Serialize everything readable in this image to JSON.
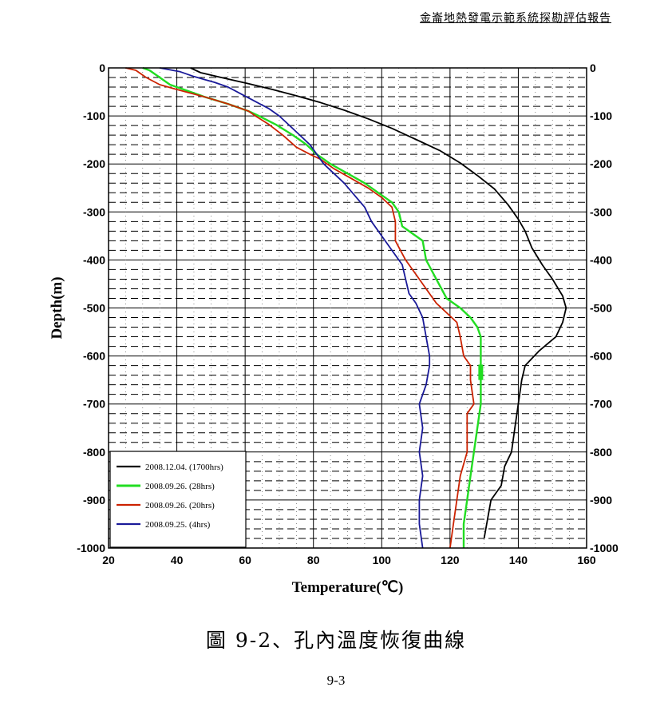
{
  "header": {
    "report_title": "金崙地熱發電示範系統探勘評估報告"
  },
  "figure": {
    "caption": "圖 9-2、孔內溫度恢復曲線"
  },
  "footer": {
    "page_number": "9-3"
  },
  "chart_data": {
    "type": "line",
    "xlabel": "Temperature(℃)",
    "ylabel": "Depth(m)",
    "xlim": [
      20,
      160
    ],
    "ylim": [
      -1000,
      0
    ],
    "x_ticks": [
      "20",
      "40",
      "60",
      "80",
      "100",
      "120",
      "140",
      "160"
    ],
    "y_ticks": [
      "0",
      "-100",
      "-200",
      "-300",
      "-400",
      "-500",
      "-600",
      "-700",
      "-800",
      "-900",
      "-1000"
    ],
    "grid": "major solid, dashed minor horizontals",
    "legend_position": "bottom-left",
    "colors": {
      "s2008_12_04": "#000000",
      "s2008_09_26_28": "#22dd22",
      "s2008_09_26_20": "#cc2200",
      "s2008_09_25_4": "#1a1a99"
    },
    "series": [
      {
        "name": "2008.12.04. (1700hrs)",
        "color": "#000000",
        "points": [
          [
            44,
            0
          ],
          [
            47,
            -10
          ],
          [
            53,
            -20
          ],
          [
            61,
            -33
          ],
          [
            68,
            -45
          ],
          [
            75,
            -58
          ],
          [
            82,
            -72
          ],
          [
            89,
            -88
          ],
          [
            96,
            -106
          ],
          [
            103,
            -126
          ],
          [
            110,
            -149
          ],
          [
            117,
            -172
          ],
          [
            123,
            -198
          ],
          [
            128,
            -224
          ],
          [
            133,
            -252
          ],
          [
            137,
            -285
          ],
          [
            140,
            -315
          ],
          [
            142,
            -340
          ],
          [
            144,
            -375
          ],
          [
            147,
            -410
          ],
          [
            150,
            -440
          ],
          [
            153,
            -475
          ],
          [
            154,
            -500
          ],
          [
            153,
            -530
          ],
          [
            151,
            -560
          ],
          [
            146,
            -590
          ],
          [
            142,
            -620
          ],
          [
            141,
            -650
          ],
          [
            140,
            -700
          ],
          [
            139,
            -750
          ],
          [
            138,
            -800
          ],
          [
            136,
            -830
          ],
          [
            135,
            -870
          ],
          [
            132,
            -900
          ],
          [
            131,
            -940
          ],
          [
            130,
            -980
          ]
        ]
      },
      {
        "name": "2008.09.26. (28hrs)",
        "color": "#22dd22",
        "points": [
          [
            30,
            0
          ],
          [
            32,
            -5
          ],
          [
            35,
            -20
          ],
          [
            38,
            -35
          ],
          [
            42,
            -45
          ],
          [
            48,
            -60
          ],
          [
            55,
            -75
          ],
          [
            61,
            -90
          ],
          [
            64,
            -100
          ],
          [
            69,
            -118
          ],
          [
            74,
            -140
          ],
          [
            78,
            -160
          ],
          [
            81,
            -180
          ],
          [
            85,
            -200
          ],
          [
            90,
            -220
          ],
          [
            95,
            -240
          ],
          [
            99,
            -260
          ],
          [
            103,
            -280
          ],
          [
            105,
            -300
          ],
          [
            106,
            -330
          ],
          [
            112,
            -360
          ],
          [
            113,
            -400
          ],
          [
            116,
            -440
          ],
          [
            119,
            -480
          ],
          [
            123,
            -500
          ],
          [
            126,
            -520
          ],
          [
            128,
            -540
          ],
          [
            129,
            -560
          ],
          [
            129,
            -600
          ],
          [
            129,
            -650
          ],
          [
            129,
            -700
          ],
          [
            128,
            -750
          ],
          [
            127,
            -800
          ],
          [
            126,
            -850
          ],
          [
            125,
            -900
          ],
          [
            124,
            -950
          ],
          [
            124,
            -1000
          ]
        ]
      },
      {
        "name": "2008.09.26. (20hrs)",
        "color": "#cc2200",
        "points": [
          [
            25,
            0
          ],
          [
            28,
            -5
          ],
          [
            31,
            -20
          ],
          [
            35,
            -35
          ],
          [
            40,
            -45
          ],
          [
            48,
            -60
          ],
          [
            55,
            -75
          ],
          [
            61,
            -90
          ],
          [
            63,
            -100
          ],
          [
            67,
            -118
          ],
          [
            71,
            -140
          ],
          [
            75,
            -165
          ],
          [
            79,
            -180
          ],
          [
            82,
            -190
          ],
          [
            86,
            -210
          ],
          [
            91,
            -230
          ],
          [
            96,
            -250
          ],
          [
            100,
            -270
          ],
          [
            103,
            -290
          ],
          [
            104,
            -320
          ],
          [
            104,
            -360
          ],
          [
            107,
            -400
          ],
          [
            110,
            -430
          ],
          [
            113,
            -460
          ],
          [
            116,
            -490
          ],
          [
            119,
            -510
          ],
          [
            122,
            -530
          ],
          [
            123,
            -560
          ],
          [
            124,
            -600
          ],
          [
            126,
            -620
          ],
          [
            126,
            -650
          ],
          [
            127,
            -700
          ],
          [
            125,
            -720
          ],
          [
            125,
            -800
          ],
          [
            123,
            -850
          ],
          [
            122,
            -900
          ],
          [
            121,
            -950
          ],
          [
            120,
            -1000
          ]
        ]
      },
      {
        "name": "2008.09.25. (4hrs)",
        "color": "#1a1a99",
        "points": [
          [
            35,
            0
          ],
          [
            41,
            -8
          ],
          [
            45,
            -18
          ],
          [
            51,
            -30
          ],
          [
            55,
            -40
          ],
          [
            59,
            -55
          ],
          [
            63,
            -70
          ],
          [
            67,
            -85
          ],
          [
            70,
            -100
          ],
          [
            73,
            -120
          ],
          [
            76,
            -140
          ],
          [
            79,
            -160
          ],
          [
            81,
            -180
          ],
          [
            83,
            -200
          ],
          [
            86,
            -220
          ],
          [
            89,
            -240
          ],
          [
            92,
            -265
          ],
          [
            95,
            -290
          ],
          [
            97,
            -320
          ],
          [
            100,
            -350
          ],
          [
            103,
            -380
          ],
          [
            106,
            -410
          ],
          [
            107,
            -440
          ],
          [
            108,
            -470
          ],
          [
            110,
            -490
          ],
          [
            112,
            -520
          ],
          [
            113,
            -560
          ],
          [
            114,
            -600
          ],
          [
            114,
            -620
          ],
          [
            113,
            -660
          ],
          [
            111,
            -700
          ],
          [
            112,
            -750
          ],
          [
            111,
            -800
          ],
          [
            112,
            -850
          ],
          [
            111,
            -900
          ],
          [
            111,
            -950
          ],
          [
            112,
            -1000
          ]
        ]
      }
    ]
  }
}
